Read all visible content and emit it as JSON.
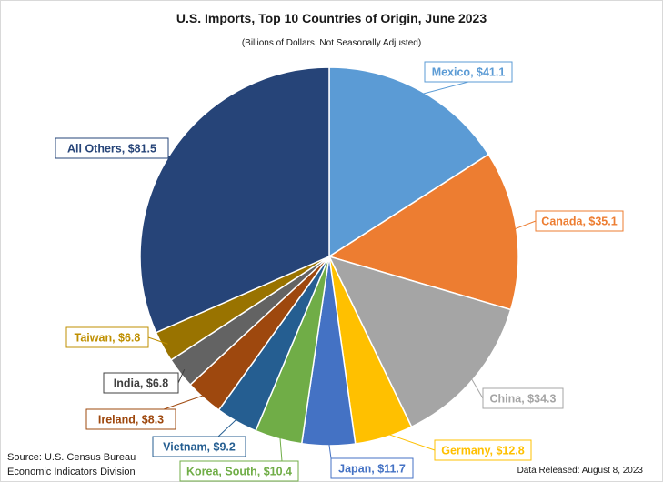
{
  "chart_data": {
    "type": "pie",
    "title": "U.S. Imports, Top 10 Countries of Origin, June 2023",
    "subtitle": "(Billions of Dollars, Not Seasonally Adjusted)",
    "slices": [
      {
        "label": "Mexico, $41.1",
        "value": 41.1,
        "color": "#5b9bd5",
        "label_color": "#5b9bd5"
      },
      {
        "label": "Canada, $35.1",
        "value": 35.1,
        "color": "#ed7d31",
        "label_color": "#ed7d31"
      },
      {
        "label": "China, $34.3",
        "value": 34.3,
        "color": "#a5a5a5",
        "label_color": "#a5a5a5"
      },
      {
        "label": "Germany, $12.8",
        "value": 12.8,
        "color": "#ffc000",
        "label_color": "#ffc000"
      },
      {
        "label": "Japan, $11.7",
        "value": 11.7,
        "color": "#4472c4",
        "label_color": "#4472c4"
      },
      {
        "label": "Korea, South, $10.4",
        "value": 10.4,
        "color": "#70ad47",
        "label_color": "#70ad47"
      },
      {
        "label": "Vietnam, $9.2",
        "value": 9.2,
        "color": "#255e91",
        "label_color": "#255e91"
      },
      {
        "label": "Ireland, $8.3",
        "value": 8.3,
        "color": "#9e480e",
        "label_color": "#9e480e"
      },
      {
        "label": "India, $6.8",
        "value": 6.8,
        "color": "#636363",
        "label_color": "#404040"
      },
      {
        "label": "Taiwan, $6.8",
        "value": 6.8,
        "color": "#997300",
        "label_color": "#bf8f00"
      },
      {
        "label": "All Others, $81.5",
        "value": 81.5,
        "color": "#264478",
        "label_color": "#264478"
      }
    ]
  },
  "footer": {
    "source_line1": "Source: U.S. Census Bureau",
    "source_line2": "Economic Indicators Division",
    "release": "Data Released: August 8, 2023"
  }
}
